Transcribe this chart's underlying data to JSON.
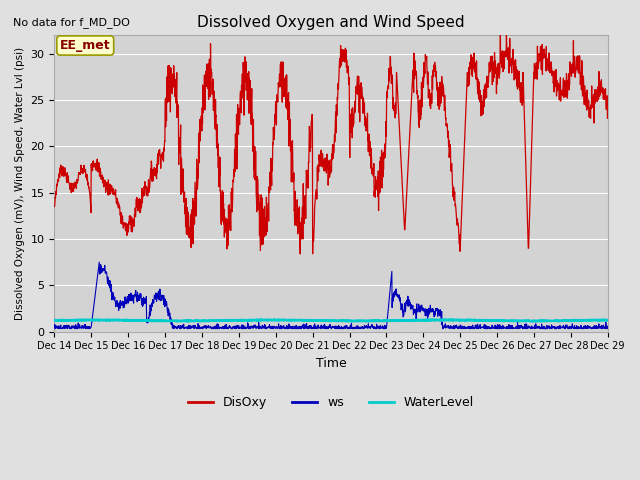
{
  "title": "Dissolved Oxygen and Wind Speed",
  "subtitle": "No data for f_MD_DO",
  "xlabel": "Time",
  "ylabel": "Dissolved Oxygen (mV), Wind Speed, Water Lvl (psi)",
  "ylim": [
    0,
    32
  ],
  "yticks": [
    0,
    5,
    10,
    15,
    20,
    25,
    30
  ],
  "xticklabels": [
    "Dec 14",
    "Dec 15",
    "Dec 16",
    "Dec 17",
    "Dec 18",
    "Dec 19",
    "Dec 20",
    "Dec 21",
    "Dec 22",
    "Dec 23",
    "Dec 24",
    "Dec 25",
    "Dec 26",
    "Dec 27",
    "Dec 28",
    "Dec 29"
  ],
  "disoxy_color": "#cc0000",
  "ws_color": "#0000bb",
  "wl_color": "#00cccc",
  "bg_color": "#e0e0e0",
  "plot_bg_color": "#d3d3d3",
  "legend_labels": [
    "DisOxy",
    "ws",
    "WaterLevel"
  ],
  "annotation_box": "EE_met",
  "annotation_box_color": "#ffffcc",
  "annotation_box_border": "#999900",
  "n_points": 2000
}
